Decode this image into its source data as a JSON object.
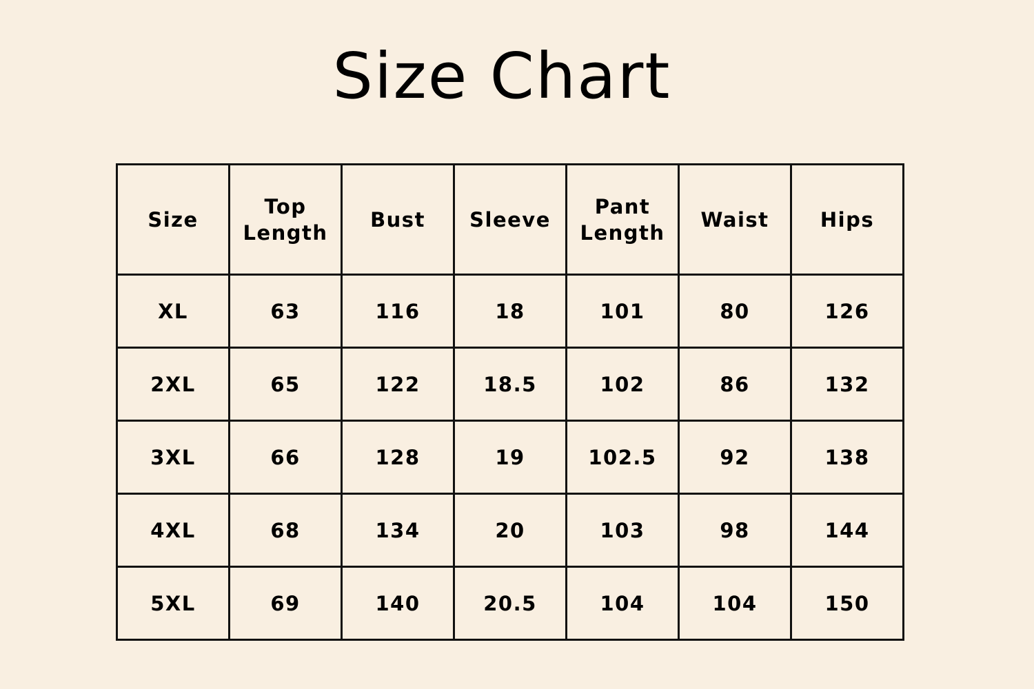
{
  "title": "Size Chart",
  "colors": {
    "background": "#f9efe1",
    "text": "#000000",
    "border": "#111111"
  },
  "table": {
    "headers": [
      [
        "Size"
      ],
      [
        "Top",
        "Length"
      ],
      [
        "Bust"
      ],
      [
        "Sleeve"
      ],
      [
        "Pant",
        "Length"
      ],
      [
        "Waist"
      ],
      [
        "Hips"
      ]
    ],
    "rows": [
      [
        "XL",
        "63",
        "116",
        "18",
        "101",
        "80",
        "126"
      ],
      [
        "2XL",
        "65",
        "122",
        "18.5",
        "102",
        "86",
        "132"
      ],
      [
        "3XL",
        "66",
        "128",
        "19",
        "102.5",
        "92",
        "138"
      ],
      [
        "4XL",
        "68",
        "134",
        "20",
        "103",
        "98",
        "144"
      ],
      [
        "5XL",
        "69",
        "140",
        "20.5",
        "104",
        "104",
        "150"
      ]
    ]
  }
}
